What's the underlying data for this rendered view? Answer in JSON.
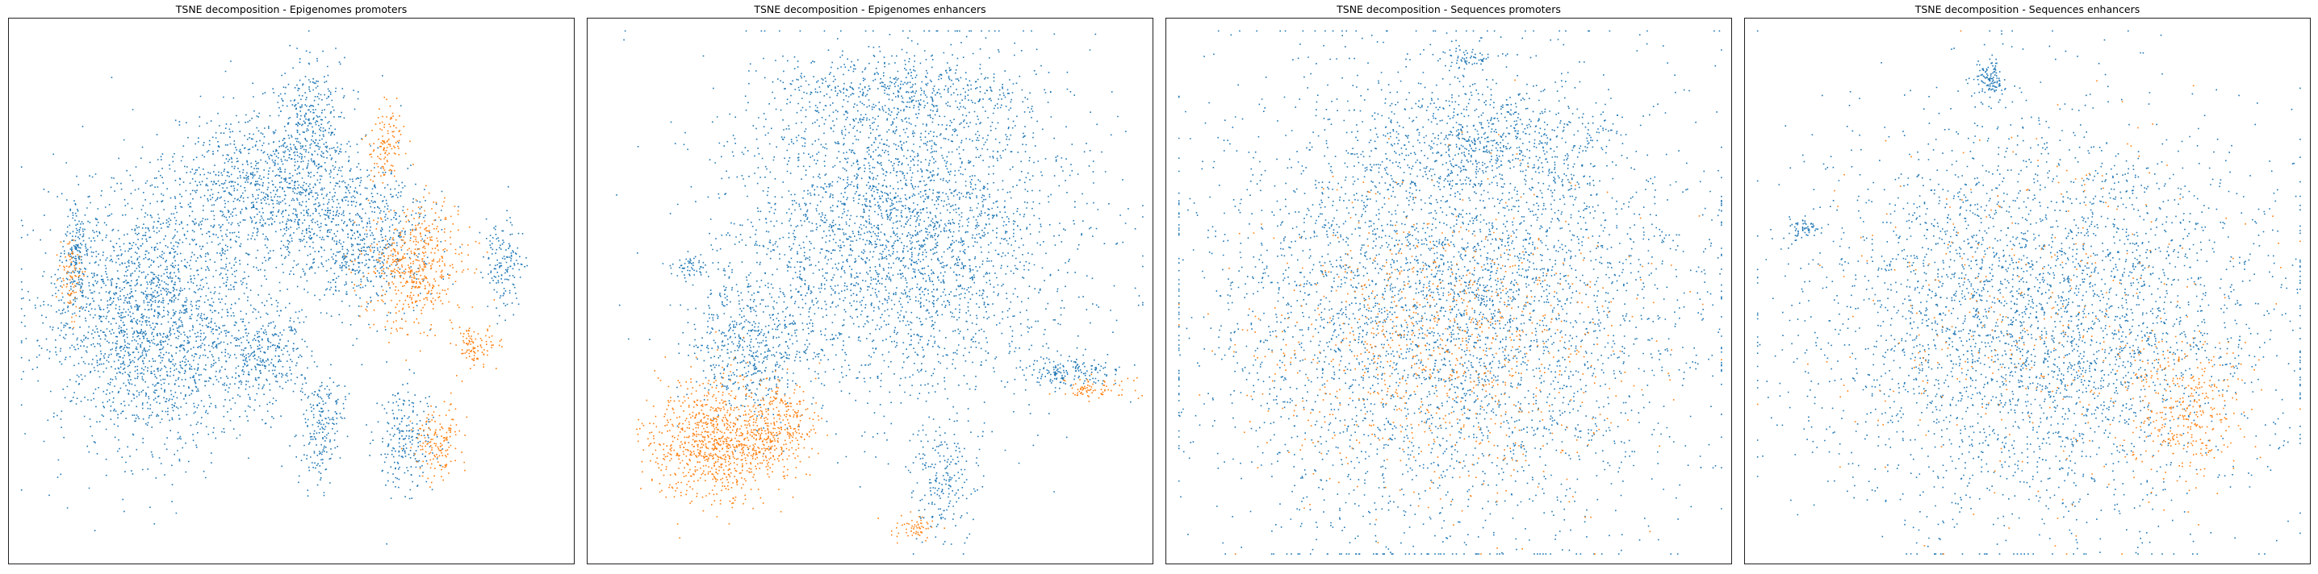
{
  "figure": {
    "panels": [
      {
        "title": "TSNE decomposition - Epigenomes promoters"
      },
      {
        "title": "TSNE decomposition - Epigenomes enhancers"
      },
      {
        "title": "TSNE decomposition - Sequences promoters"
      },
      {
        "title": "TSNE decomposition - Sequences enhancers"
      }
    ]
  },
  "chart_data": [
    {
      "type": "scatter",
      "title": "TSNE decomposition - Epigenomes promoters",
      "xlabel": "",
      "ylabel": "",
      "ticks": "none",
      "grid": false,
      "colors": {
        "class_0": "#1f77b4",
        "class_1": "#ff7f0e"
      },
      "note_clusters": [
        {
          "class": "class_0",
          "cx": 0.25,
          "cy": 0.55,
          "rx": 0.18,
          "ry": 0.22,
          "n": 2200
        },
        {
          "class": "class_0",
          "cx": 0.45,
          "cy": 0.3,
          "rx": 0.16,
          "ry": 0.12,
          "n": 900
        },
        {
          "class": "class_0",
          "cx": 0.62,
          "cy": 0.4,
          "rx": 0.12,
          "ry": 0.12,
          "n": 700
        },
        {
          "class": "class_0",
          "cx": 0.53,
          "cy": 0.18,
          "rx": 0.06,
          "ry": 0.1,
          "n": 300
        },
        {
          "class": "class_0",
          "cx": 0.45,
          "cy": 0.62,
          "rx": 0.07,
          "ry": 0.08,
          "n": 300
        },
        {
          "class": "class_0",
          "cx": 0.55,
          "cy": 0.75,
          "rx": 0.04,
          "ry": 0.1,
          "n": 200
        },
        {
          "class": "class_0",
          "cx": 0.11,
          "cy": 0.42,
          "rx": 0.025,
          "ry": 0.09,
          "n": 150
        },
        {
          "class": "class_0",
          "cx": 0.7,
          "cy": 0.78,
          "rx": 0.05,
          "ry": 0.09,
          "n": 220
        },
        {
          "class": "class_0",
          "cx": 0.88,
          "cy": 0.45,
          "rx": 0.03,
          "ry": 0.08,
          "n": 150
        },
        {
          "class": "class_1",
          "cx": 0.72,
          "cy": 0.45,
          "rx": 0.08,
          "ry": 0.1,
          "n": 500
        },
        {
          "class": "class_1",
          "cx": 0.67,
          "cy": 0.22,
          "rx": 0.03,
          "ry": 0.07,
          "n": 120
        },
        {
          "class": "class_1",
          "cx": 0.76,
          "cy": 0.78,
          "rx": 0.04,
          "ry": 0.06,
          "n": 150
        },
        {
          "class": "class_1",
          "cx": 0.1,
          "cy": 0.48,
          "rx": 0.02,
          "ry": 0.06,
          "n": 80
        },
        {
          "class": "class_1",
          "cx": 0.83,
          "cy": 0.6,
          "rx": 0.03,
          "ry": 0.04,
          "n": 100
        }
      ]
    },
    {
      "type": "scatter",
      "title": "TSNE decomposition - Epigenomes enhancers",
      "xlabel": "",
      "ylabel": "",
      "ticks": "none",
      "grid": false,
      "colors": {
        "class_0": "#1f77b4",
        "class_1": "#ff7f0e"
      },
      "note_clusters": [
        {
          "class": "class_0",
          "cx": 0.55,
          "cy": 0.38,
          "rx": 0.28,
          "ry": 0.28,
          "n": 3200
        },
        {
          "class": "class_0",
          "cx": 0.55,
          "cy": 0.12,
          "rx": 0.2,
          "ry": 0.06,
          "n": 400
        },
        {
          "class": "class_0",
          "cx": 0.28,
          "cy": 0.6,
          "rx": 0.1,
          "ry": 0.12,
          "n": 500
        },
        {
          "class": "class_0",
          "cx": 0.85,
          "cy": 0.65,
          "rx": 0.08,
          "ry": 0.03,
          "n": 160
        },
        {
          "class": "class_0",
          "cx": 0.63,
          "cy": 0.85,
          "rx": 0.05,
          "ry": 0.1,
          "n": 200
        },
        {
          "class": "class_0",
          "cx": 0.17,
          "cy": 0.45,
          "rx": 0.03,
          "ry": 0.02,
          "n": 50
        },
        {
          "class": "class_1",
          "cx": 0.22,
          "cy": 0.78,
          "rx": 0.11,
          "ry": 0.1,
          "n": 900
        },
        {
          "class": "class_1",
          "cx": 0.33,
          "cy": 0.75,
          "rx": 0.06,
          "ry": 0.08,
          "n": 300
        },
        {
          "class": "class_1",
          "cx": 0.9,
          "cy": 0.68,
          "rx": 0.06,
          "ry": 0.02,
          "n": 80
        },
        {
          "class": "class_1",
          "cx": 0.58,
          "cy": 0.94,
          "rx": 0.04,
          "ry": 0.02,
          "n": 60
        }
      ]
    },
    {
      "type": "scatter",
      "title": "TSNE decomposition - Sequences promoters",
      "xlabel": "",
      "ylabel": "",
      "ticks": "none",
      "grid": false,
      "colors": {
        "class_0": "#1f77b4",
        "class_1": "#ff7f0e"
      },
      "note_clusters": [
        {
          "class": "class_0",
          "cx": 0.5,
          "cy": 0.52,
          "rx": 0.4,
          "ry": 0.4,
          "n": 4200
        },
        {
          "class": "class_0",
          "cx": 0.57,
          "cy": 0.22,
          "rx": 0.2,
          "ry": 0.1,
          "n": 600
        },
        {
          "class": "class_0",
          "cx": 0.53,
          "cy": 0.06,
          "rx": 0.04,
          "ry": 0.02,
          "n": 60
        },
        {
          "class": "class_1",
          "cx": 0.48,
          "cy": 0.6,
          "rx": 0.32,
          "ry": 0.25,
          "n": 900
        }
      ]
    },
    {
      "type": "scatter",
      "title": "TSNE decomposition - Sequences enhancers",
      "xlabel": "",
      "ylabel": "",
      "ticks": "none",
      "grid": false,
      "colors": {
        "class_0": "#1f77b4",
        "class_1": "#ff7f0e"
      },
      "note_clusters": [
        {
          "class": "class_0",
          "cx": 0.52,
          "cy": 0.55,
          "rx": 0.38,
          "ry": 0.34,
          "n": 3600
        },
        {
          "class": "class_0",
          "cx": 0.43,
          "cy": 0.1,
          "rx": 0.03,
          "ry": 0.04,
          "n": 120
        },
        {
          "class": "class_0",
          "cx": 0.09,
          "cy": 0.38,
          "rx": 0.03,
          "ry": 0.02,
          "n": 60
        },
        {
          "class": "class_1",
          "cx": 0.78,
          "cy": 0.72,
          "rx": 0.1,
          "ry": 0.12,
          "n": 350
        },
        {
          "class": "class_1",
          "cx": 0.5,
          "cy": 0.55,
          "rx": 0.32,
          "ry": 0.3,
          "n": 350
        }
      ]
    }
  ]
}
